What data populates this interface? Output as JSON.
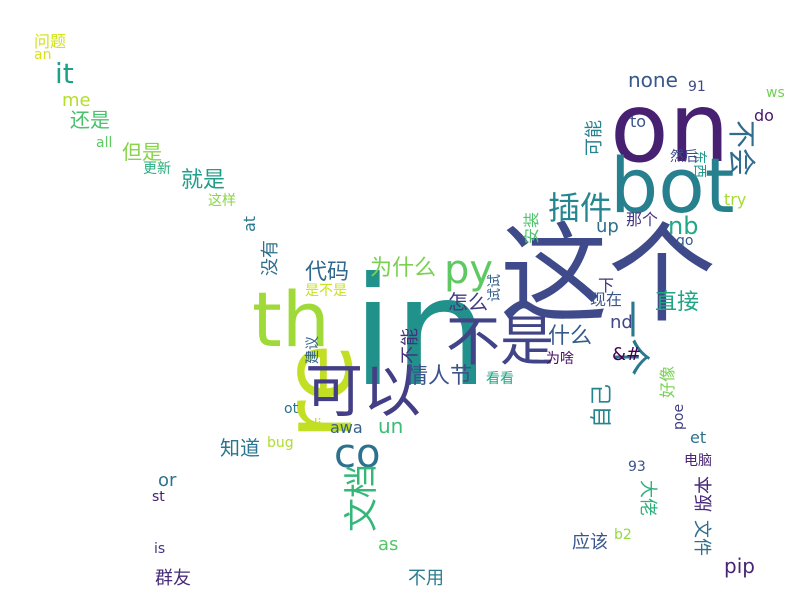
{
  "words": [
    {
      "text": "in",
      "color": "#21918c"
    },
    {
      "text": "这个",
      "color": "#3e4a89"
    },
    {
      "text": "re",
      "color": "#c2df23"
    },
    {
      "text": "on",
      "color": "#482071"
    },
    {
      "text": "bot",
      "color": "#27808e"
    },
    {
      "text": "th",
      "color": "#a0da39"
    },
    {
      "text": "可以",
      "color": "#433e85"
    },
    {
      "text": "不是",
      "color": "#414487"
    },
    {
      "text": "co",
      "color": "#2c728e"
    },
    {
      "text": "py",
      "color": "#5ec962"
    },
    {
      "text": "一个",
      "color": "#2a788e"
    },
    {
      "text": "文档",
      "color": "#35b779"
    },
    {
      "text": "插件",
      "color": "#24868e"
    },
    {
      "text": "不会",
      "color": "#2f6c8e"
    },
    {
      "text": "情人节",
      "color": "#3b528b"
    },
    {
      "text": "为什么",
      "color": "#7ad151"
    },
    {
      "text": "代码",
      "color": "#31688e"
    },
    {
      "text": "就是",
      "color": "#1f9e89"
    },
    {
      "text": "nb",
      "color": "#22a884"
    },
    {
      "text": "直接",
      "color": "#20a486"
    },
    {
      "text": "什么",
      "color": "#365c8d"
    },
    {
      "text": "it",
      "color": "#1fa187"
    },
    {
      "text": "怎么",
      "color": "#443983"
    },
    {
      "text": "none",
      "color": "#38588c"
    },
    {
      "text": "自己",
      "color": "#25858e"
    },
    {
      "text": "还是",
      "color": "#4ac16d"
    },
    {
      "text": "但是",
      "color": "#86d549"
    },
    {
      "text": "知道",
      "color": "#2a768e"
    },
    {
      "text": "不能",
      "color": "#46307e"
    },
    {
      "text": "un",
      "color": "#3dbc74"
    },
    {
      "text": "没有",
      "color": "#2e6f8e"
    },
    {
      "text": "pip",
      "color": "#482475"
    },
    {
      "text": "me",
      "color": "#b5de2b"
    },
    {
      "text": "可能",
      "color": "#26828e"
    },
    {
      "text": "版本",
      "color": "#482878"
    },
    {
      "text": "up",
      "color": "#2d708e"
    },
    {
      "text": "nd",
      "color": "#3f4788"
    },
    {
      "text": "&#",
      "color": "#440154"
    },
    {
      "text": "as",
      "color": "#54c568"
    },
    {
      "text": "or",
      "color": "#2c738e"
    },
    {
      "text": "群友",
      "color": "#472c7a"
    },
    {
      "text": "不用",
      "color": "#287d8e"
    },
    {
      "text": "应该",
      "color": "#39568c"
    },
    {
      "text": "文件",
      "color": "#2e6e8e"
    },
    {
      "text": "大佬",
      "color": "#2db27d"
    },
    {
      "text": "awa",
      "color": "#355f8d"
    },
    {
      "text": "at",
      "color": "#2a788e"
    },
    {
      "text": "好像",
      "color": "#77d153"
    },
    {
      "text": "安装",
      "color": "#4ec36b"
    },
    {
      "text": "那个",
      "color": "#453882"
    },
    {
      "text": "现在",
      "color": "#3a548c"
    },
    {
      "text": "下",
      "color": "#46327e"
    },
    {
      "text": "试试",
      "color": "#34618d"
    },
    {
      "text": "东西",
      "color": "#1e9b8a"
    },
    {
      "text": "然后",
      "color": "#3e4989"
    },
    {
      "text": "为啥",
      "color": "#470e61"
    },
    {
      "text": "看看",
      "color": "#21a685"
    },
    {
      "text": "建议",
      "color": "#33638d"
    },
    {
      "text": "这样",
      "color": "#8bd646"
    },
    {
      "text": "更新",
      "color": "#29af7f"
    },
    {
      "text": "是不是",
      "color": "#cae11f"
    },
    {
      "text": "问题",
      "color": "#d2e21b"
    },
    {
      "text": "an",
      "color": "#d8e219"
    },
    {
      "text": "all",
      "color": "#5ec962"
    },
    {
      "text": "do",
      "color": "#48186a"
    },
    {
      "text": "to",
      "color": "#3b528b"
    },
    {
      "text": "ws",
      "color": "#73d056"
    },
    {
      "text": "try",
      "color": "#a8db34"
    },
    {
      "text": "go",
      "color": "#38598c"
    },
    {
      "text": "91",
      "color": "#3f4788"
    },
    {
      "text": "93",
      "color": "#3b528b"
    },
    {
      "text": "et",
      "color": "#2c728e"
    },
    {
      "text": "poe",
      "color": "#424086"
    },
    {
      "text": "电脑",
      "color": "#482475"
    },
    {
      "text": "bug",
      "color": "#b0dd2f"
    },
    {
      "text": "cli",
      "color": "#bddf26"
    },
    {
      "text": "ot",
      "color": "#2d708e"
    },
    {
      "text": "st",
      "color": "#481b6d"
    },
    {
      "text": "is",
      "color": "#46337f"
    },
    {
      "text": "b2",
      "color": "#95d840"
    }
  ]
}
